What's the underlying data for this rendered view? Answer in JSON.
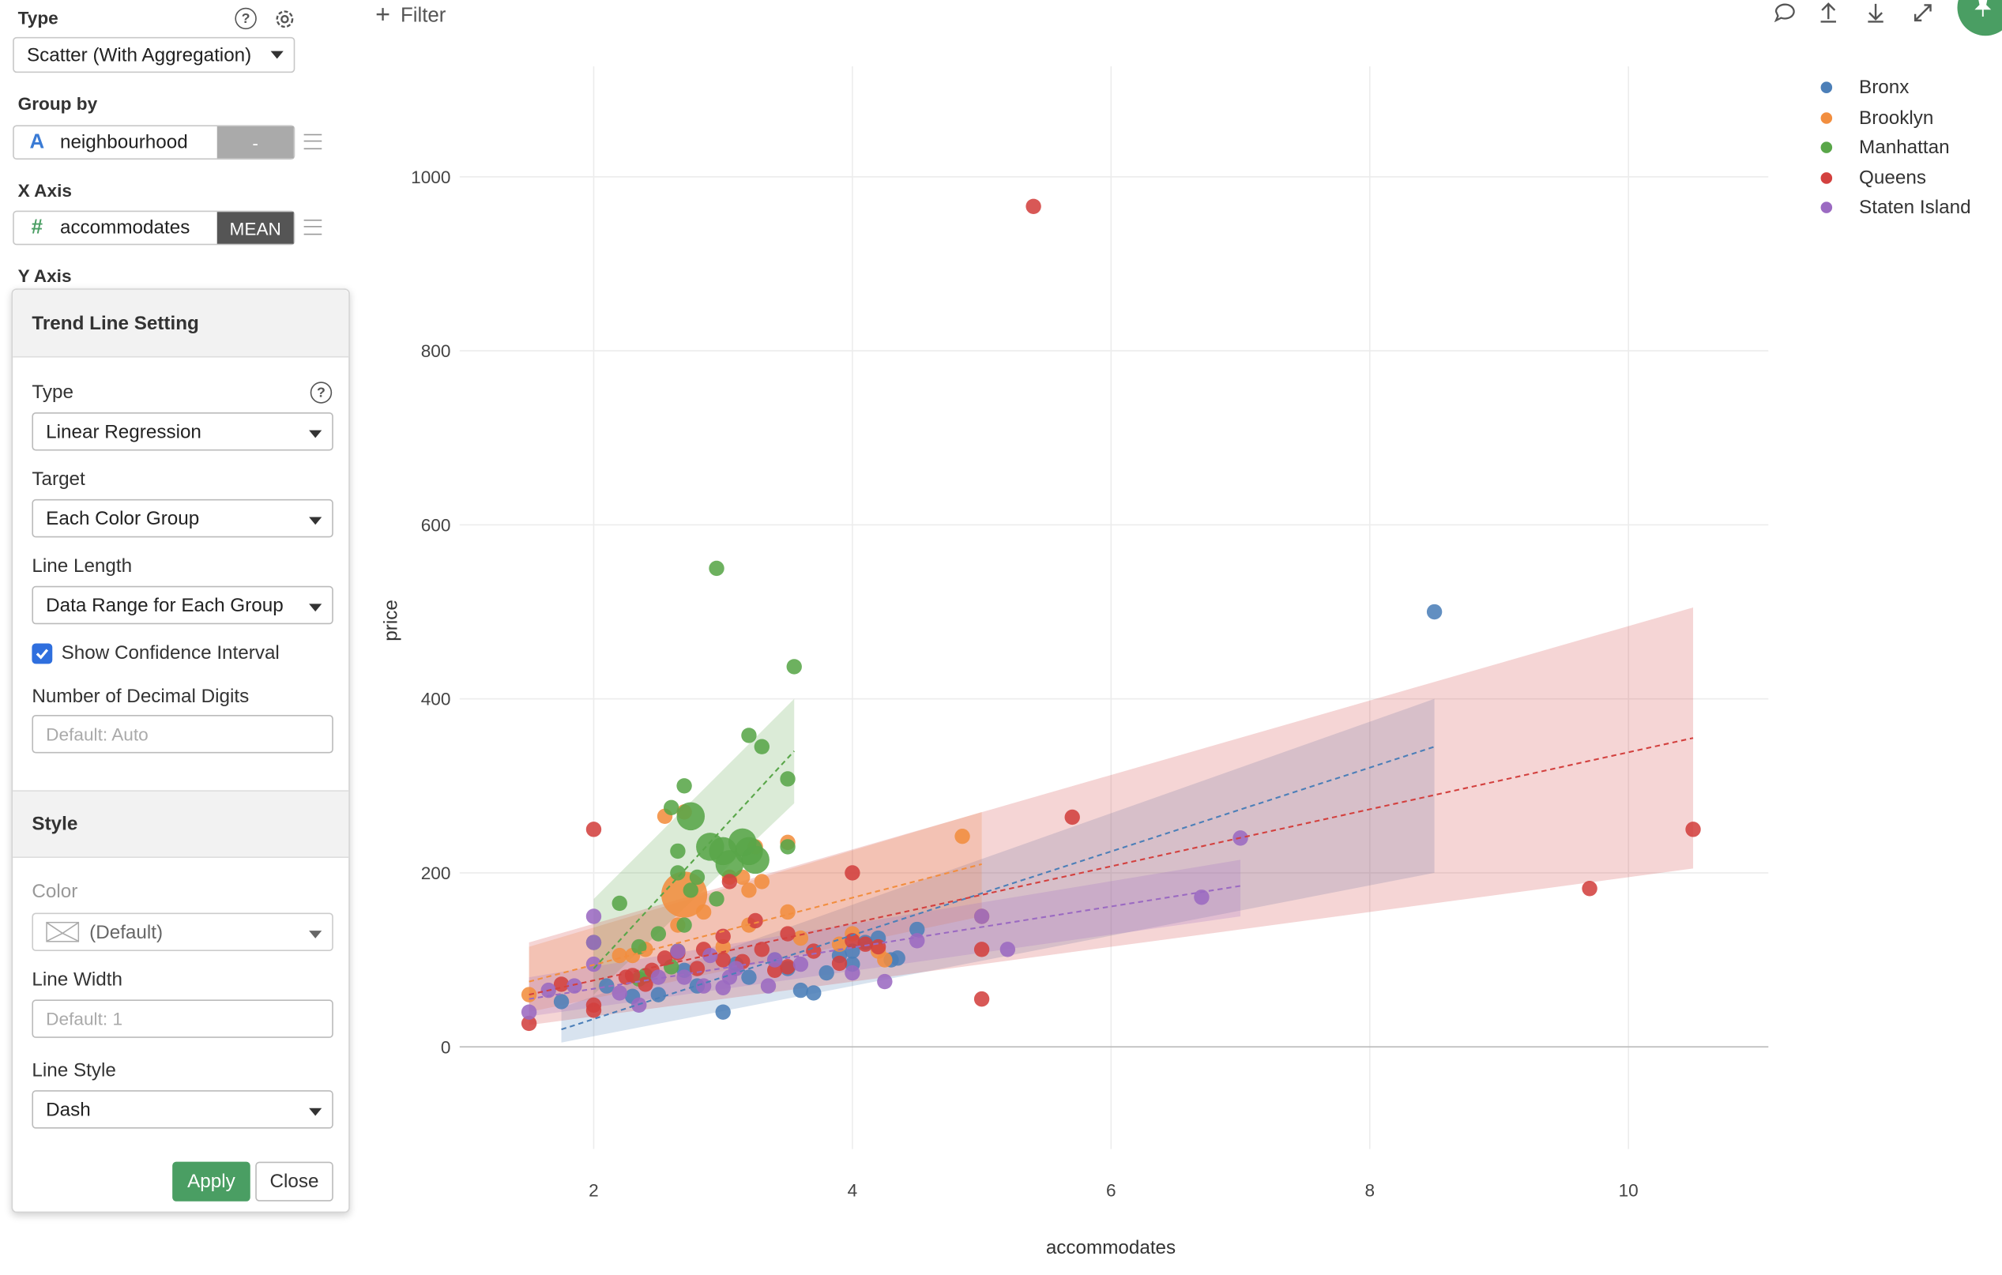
{
  "toolbar": {
    "filter_label": "Filter"
  },
  "config": {
    "type_label": "Type",
    "type_value": "Scatter (With Aggregation)",
    "group_by_label": "Group by",
    "group_by_column": "neighbourhood",
    "group_by_type_icon": "A",
    "group_by_agg": "-",
    "x_axis_label": "X Axis",
    "x_axis_column": "accommodates",
    "x_axis_type_icon": "#",
    "x_axis_agg": "MEAN",
    "y_axis_label": "Y Axis"
  },
  "trend_panel": {
    "title": "Trend Line Setting",
    "type_label": "Type",
    "type_value": "Linear Regression",
    "target_label": "Target",
    "target_value": "Each Color Group",
    "line_length_label": "Line Length",
    "line_length_value": "Data Range for Each Group",
    "show_ci_label": "Show Confidence Interval",
    "show_ci_checked": true,
    "decimal_label": "Number of Decimal Digits",
    "decimal_placeholder": "Default: Auto",
    "style_title": "Style",
    "color_label": "Color",
    "color_value": "(Default)",
    "line_width_label": "Line Width",
    "line_width_placeholder": "Default: 1",
    "line_style_label": "Line Style",
    "line_style_value": "Dash",
    "apply_label": "Apply",
    "close_label": "Close",
    "apply_color": "#4a9e63"
  },
  "chart_data": {
    "type": "scatter",
    "xlabel": "accommodates",
    "ylabel": "price",
    "xlim": [
      1.0,
      11.1
    ],
    "ylim": [
      -150,
      1130
    ],
    "x_ticks": [
      2,
      4,
      6,
      8,
      10
    ],
    "y_ticks": [
      0,
      200,
      400,
      600,
      800,
      1000
    ],
    "grid": true,
    "legend_position": "top-right",
    "series": [
      {
        "name": "Bronx",
        "color": "#4c7fb8",
        "points": [
          [
            8.5,
            500
          ],
          [
            3.0,
            40
          ],
          [
            3.6,
            65
          ],
          [
            3.7,
            62
          ],
          [
            3.8,
            85
          ],
          [
            4.0,
            95
          ],
          [
            4.0,
            110
          ],
          [
            4.2,
            125
          ],
          [
            4.3,
            100
          ],
          [
            4.5,
            135
          ],
          [
            3.5,
            90
          ],
          [
            3.4,
            100
          ],
          [
            2.5,
            60
          ],
          [
            2.8,
            70
          ],
          [
            3.2,
            80
          ],
          [
            2.1,
            70
          ],
          [
            1.75,
            52
          ],
          [
            2.3,
            58
          ],
          [
            4.1,
            120
          ],
          [
            3.9,
            105
          ],
          [
            2.7,
            88
          ],
          [
            3.1,
            95
          ],
          [
            4.35,
            102
          ]
        ],
        "trend": {
          "x": [
            1.75,
            8.5
          ],
          "y": [
            20,
            345
          ],
          "ci_low": [
            5,
            200
          ],
          "ci_high": [
            45,
            400
          ]
        }
      },
      {
        "name": "Brooklyn",
        "color": "#f28e3f",
        "points": [
          [
            1.5,
            60
          ],
          [
            4.85,
            242
          ],
          [
            3.5,
            235
          ],
          [
            3.25,
            230
          ],
          [
            3.2,
            180
          ],
          [
            3.3,
            190
          ],
          [
            3.15,
            195
          ],
          [
            3.5,
            155
          ],
          [
            3.05,
            195
          ],
          [
            2.55,
            265
          ],
          [
            2.7,
            270
          ],
          [
            2.65,
            140
          ],
          [
            2.7,
            175
          ],
          [
            2.2,
            105
          ],
          [
            2.3,
            105
          ],
          [
            2.4,
            112
          ],
          [
            3.0,
            115
          ],
          [
            3.2,
            140
          ],
          [
            3.6,
            125
          ],
          [
            3.9,
            118
          ],
          [
            4.2,
            110
          ],
          [
            4.25,
            100
          ],
          [
            4.0,
            130
          ],
          [
            5.0,
            150
          ],
          [
            2.85,
            155
          ]
        ],
        "sizes": {
          "2.65": 20
        },
        "trend": {
          "x": [
            1.5,
            5.0
          ],
          "y": [
            75,
            210
          ],
          "ci_low": [
            40,
            150
          ],
          "ci_high": [
            115,
            270
          ]
        }
      },
      {
        "name": "Manhattan",
        "color": "#59a649",
        "points": [
          [
            2.95,
            550
          ],
          [
            3.55,
            437
          ],
          [
            3.3,
            345
          ],
          [
            3.2,
            358
          ],
          [
            3.5,
            308
          ],
          [
            2.7,
            300
          ],
          [
            2.6,
            275
          ],
          [
            2.75,
            265
          ],
          [
            2.9,
            230
          ],
          [
            3.0,
            225
          ],
          [
            3.2,
            225
          ],
          [
            3.05,
            210
          ],
          [
            3.25,
            215
          ],
          [
            3.15,
            235
          ],
          [
            3.5,
            230
          ],
          [
            2.65,
            225
          ],
          [
            2.75,
            180
          ],
          [
            2.65,
            200
          ],
          [
            2.95,
            170
          ],
          [
            2.8,
            195
          ],
          [
            2.7,
            140
          ],
          [
            2.65,
            110
          ],
          [
            2.35,
            115
          ],
          [
            2.0,
            120
          ],
          [
            2.2,
            165
          ],
          [
            2.5,
            130
          ],
          [
            2.6,
            92
          ],
          [
            2.4,
            82
          ],
          [
            2.35,
            78
          ]
        ],
        "trend": {
          "x": [
            2.0,
            3.55
          ],
          "y": [
            90,
            340
          ],
          "ci_low": [
            60,
            280
          ],
          "ci_high": [
            170,
            400
          ]
        }
      },
      {
        "name": "Queens",
        "color": "#d3413f",
        "points": [
          [
            5.4,
            966
          ],
          [
            10.5,
            250
          ],
          [
            9.7,
            182
          ],
          [
            5.7,
            264
          ],
          [
            4.0,
            200
          ],
          [
            5.0,
            55
          ],
          [
            5.0,
            112
          ],
          [
            3.05,
            190
          ],
          [
            3.25,
            145
          ],
          [
            3.0,
            127
          ],
          [
            3.5,
            130
          ],
          [
            2.0,
            250
          ],
          [
            1.5,
            27
          ],
          [
            2.0,
            42
          ],
          [
            2.0,
            48
          ],
          [
            1.75,
            72
          ],
          [
            2.25,
            80
          ],
          [
            2.3,
            82
          ],
          [
            2.45,
            88
          ],
          [
            2.55,
            102
          ],
          [
            2.65,
            108
          ],
          [
            2.85,
            112
          ],
          [
            3.0,
            100
          ],
          [
            3.15,
            98
          ],
          [
            3.3,
            112
          ],
          [
            3.4,
            88
          ],
          [
            3.5,
            92
          ],
          [
            3.7,
            110
          ],
          [
            3.9,
            96
          ],
          [
            4.0,
            122
          ],
          [
            4.1,
            118
          ],
          [
            4.2,
            115
          ],
          [
            2.8,
            90
          ],
          [
            2.4,
            72
          ]
        ],
        "trend": {
          "x": [
            1.5,
            10.5
          ],
          "y": [
            60,
            355
          ],
          "ci_low": [
            25,
            205
          ],
          "ci_high": [
            120,
            505
          ]
        }
      },
      {
        "name": "Staten Island",
        "color": "#9b6ac2",
        "points": [
          [
            7.0,
            240
          ],
          [
            6.7,
            172
          ],
          [
            5.0,
            150
          ],
          [
            5.2,
            112
          ],
          [
            4.5,
            122
          ],
          [
            4.25,
            75
          ],
          [
            4.0,
            85
          ],
          [
            3.35,
            70
          ],
          [
            3.0,
            68
          ],
          [
            3.05,
            80
          ],
          [
            2.7,
            80
          ],
          [
            2.5,
            80
          ],
          [
            2.35,
            48
          ],
          [
            2.2,
            62
          ],
          [
            1.5,
            40
          ],
          [
            1.65,
            65
          ],
          [
            1.85,
            70
          ],
          [
            2.0,
            95
          ],
          [
            2.0,
            150
          ],
          [
            2.0,
            120
          ],
          [
            2.65,
            110
          ],
          [
            2.85,
            70
          ],
          [
            3.1,
            90
          ],
          [
            3.4,
            100
          ],
          [
            3.6,
            95
          ],
          [
            2.9,
            105
          ]
        ],
        "trend": {
          "x": [
            1.5,
            7.0
          ],
          "y": [
            55,
            185
          ],
          "ci_low": [
            35,
            150
          ],
          "ci_high": [
            80,
            215
          ]
        }
      }
    ]
  }
}
